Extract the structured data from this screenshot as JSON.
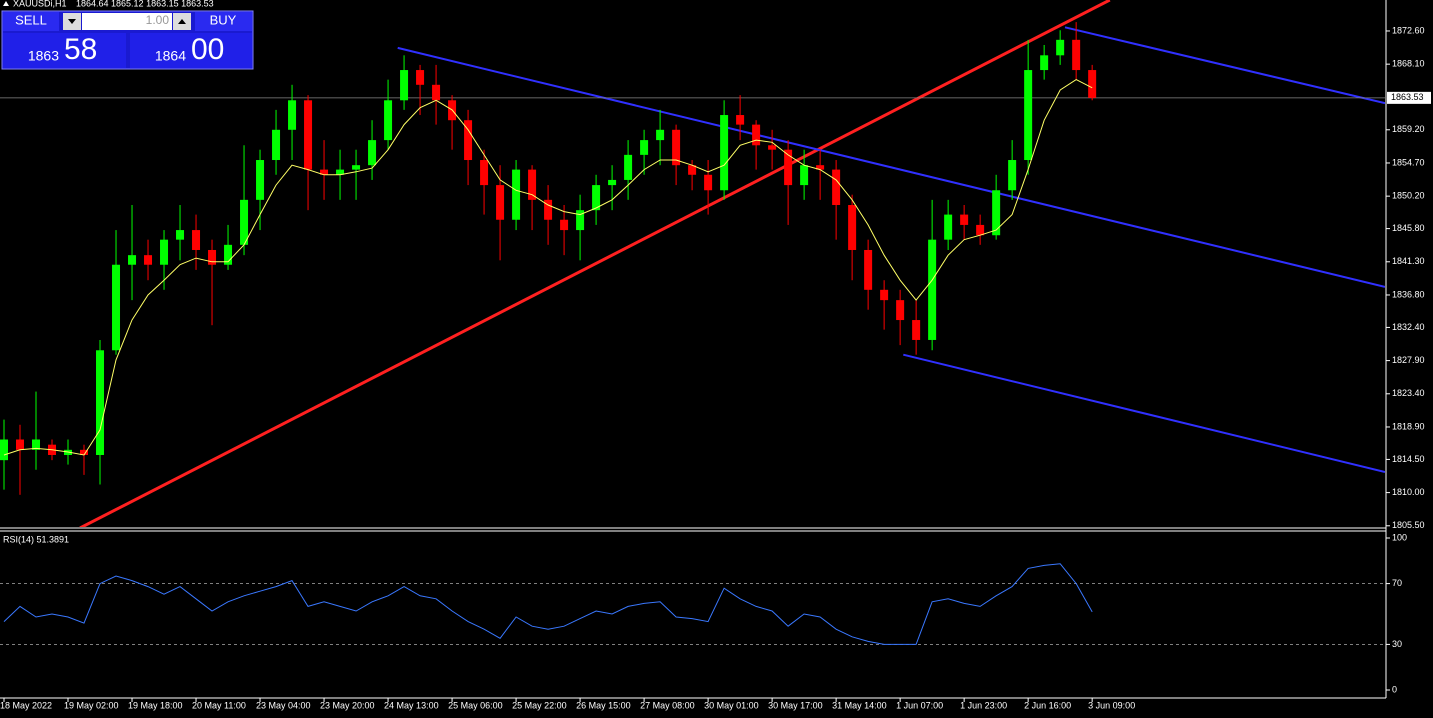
{
  "header": {
    "symbol": "XAUUSDi,H1",
    "ohlc": "1864.64 1865.12 1863.15 1863.53"
  },
  "trade_panel": {
    "sell": "SELL",
    "buy": "BUY",
    "lots": "1.00",
    "bid_big": "1863",
    "bid_small": "58",
    "ask_big": "1864",
    "ask_small": "00"
  },
  "chart_data": [
    {
      "type": "candlestick",
      "categories": [
        "18 May 2022",
        null,
        null,
        null,
        "19 May 02:00",
        null,
        null,
        null,
        "19 May 18:00",
        null,
        null,
        null,
        "20 May 11:00",
        null,
        null,
        null,
        "23 May 04:00",
        null,
        null,
        null,
        "23 May 20:00",
        null,
        null,
        null,
        "24 May 13:00",
        null,
        null,
        null,
        "25 May 06:00",
        null,
        null,
        null,
        "25 May 22:00",
        null,
        null,
        null,
        "26 May 15:00",
        null,
        null,
        null,
        "27 May 08:00",
        null,
        null,
        null,
        "30 May 01:00",
        null,
        null,
        null,
        "30 May 17:00",
        null,
        null,
        null,
        "31 May 14:00",
        null,
        null,
        null,
        "1 Jun 07:00",
        null,
        null,
        null,
        "1 Jun 23:00",
        null,
        null,
        null,
        "2 Jun 16:00",
        null,
        null,
        null,
        "3 Jun 09:00"
      ],
      "open": [
        1814.4,
        1817.2,
        1815.8,
        1816.5,
        1815.1,
        1815.8,
        1815.1,
        1829.3,
        1840.9,
        1842.2,
        1840.9,
        1844.3,
        1845.6,
        1842.9,
        1840.9,
        1843.6,
        1849.7,
        1855.1,
        1859.2,
        1863.2,
        1853.8,
        1853.1,
        1853.8,
        1854.4,
        1857.8,
        1863.2,
        1867.3,
        1865.3,
        1863.2,
        1860.5,
        1855.1,
        1851.7,
        1847.0,
        1853.8,
        1849.7,
        1847.0,
        1845.6,
        1848.3,
        1851.7,
        1852.4,
        1855.8,
        1857.8,
        1859.2,
        1854.4,
        1853.1,
        1851.0,
        1861.2,
        1859.9,
        1857.1,
        1856.5,
        1851.7,
        1854.4,
        1853.8,
        1849.0,
        1842.9,
        1837.5,
        1836.1,
        1833.4,
        1830.7,
        1844.3,
        1847.7,
        1846.3,
        1844.9,
        1851.0,
        1855.1,
        1867.3,
        1869.3,
        1871.4,
        1867.3
      ],
      "high": [
        1819.9,
        1819.2,
        1823.7,
        1817.2,
        1817.2,
        1816.5,
        1830.7,
        1845.6,
        1849.0,
        1844.3,
        1845.6,
        1849.0,
        1847.7,
        1844.3,
        1846.3,
        1857.1,
        1856.5,
        1861.9,
        1865.3,
        1863.9,
        1857.8,
        1856.5,
        1856.5,
        1860.5,
        1866.0,
        1869.3,
        1868.0,
        1868.0,
        1863.9,
        1861.9,
        1856.5,
        1854.4,
        1855.1,
        1854.4,
        1851.7,
        1849.0,
        1850.4,
        1853.1,
        1854.4,
        1857.8,
        1859.2,
        1861.9,
        1859.9,
        1855.1,
        1855.1,
        1863.2,
        1863.9,
        1860.5,
        1859.2,
        1857.8,
        1856.5,
        1856.5,
        1855.1,
        1850.4,
        1844.3,
        1838.8,
        1837.5,
        1836.1,
        1849.7,
        1849.7,
        1849.0,
        1847.7,
        1853.1,
        1857.8,
        1871.4,
        1870.7,
        1872.7,
        1873.8,
        1868.0
      ],
      "low": [
        1810.4,
        1809.7,
        1813.1,
        1814.4,
        1813.8,
        1812.4,
        1811.1,
        1828.7,
        1836.1,
        1838.8,
        1837.5,
        1841.5,
        1840.2,
        1832.7,
        1840.2,
        1842.2,
        1845.6,
        1853.1,
        1855.1,
        1848.3,
        1849.7,
        1849.7,
        1849.7,
        1852.4,
        1856.5,
        1861.9,
        1861.2,
        1859.9,
        1856.5,
        1851.7,
        1847.7,
        1841.5,
        1845.6,
        1845.6,
        1843.6,
        1842.2,
        1841.5,
        1846.3,
        1848.3,
        1849.7,
        1853.1,
        1854.4,
        1851.7,
        1851.0,
        1847.7,
        1849.7,
        1857.8,
        1853.8,
        1853.8,
        1846.3,
        1849.7,
        1849.7,
        1844.3,
        1838.8,
        1834.8,
        1832.1,
        1830.0,
        1828.7,
        1829.3,
        1842.9,
        1844.3,
        1843.6,
        1844.3,
        1849.7,
        1853.1,
        1866.0,
        1868.0,
        1866.0,
        1863.2
      ],
      "close": [
        1817.2,
        1815.8,
        1817.2,
        1815.1,
        1815.8,
        1815.1,
        1829.3,
        1840.9,
        1842.2,
        1840.9,
        1844.3,
        1845.6,
        1842.9,
        1840.9,
        1843.6,
        1849.7,
        1855.1,
        1859.2,
        1863.2,
        1853.8,
        1853.1,
        1853.8,
        1854.4,
        1857.8,
        1863.2,
        1867.3,
        1865.3,
        1863.2,
        1860.5,
        1855.1,
        1851.7,
        1847.0,
        1853.8,
        1849.7,
        1847.0,
        1845.6,
        1848.3,
        1851.7,
        1852.4,
        1855.8,
        1857.8,
        1859.2,
        1854.4,
        1853.1,
        1851.0,
        1861.2,
        1859.9,
        1857.1,
        1856.5,
        1851.7,
        1854.4,
        1853.8,
        1849.0,
        1842.9,
        1837.5,
        1836.1,
        1833.4,
        1830.7,
        1844.3,
        1847.7,
        1846.3,
        1844.9,
        1851.0,
        1855.1,
        1867.3,
        1869.3,
        1871.4,
        1867.3,
        1863.53
      ],
      "up_color": "#00ff00",
      "down_color": "#ff0000",
      "series": [
        {
          "color": "#ffff66",
          "values": [
            1815.1,
            1815.8,
            1816.0,
            1815.8,
            1815.5,
            1815.1,
            1818.5,
            1828.0,
            1833.4,
            1836.8,
            1838.8,
            1840.9,
            1841.8,
            1841.3,
            1841.3,
            1843.6,
            1847.7,
            1851.7,
            1854.4,
            1853.8,
            1853.1,
            1853.1,
            1853.5,
            1854.0,
            1856.5,
            1859.9,
            1862.2,
            1863.2,
            1861.9,
            1859.2,
            1855.8,
            1852.4,
            1851.0,
            1850.4,
            1849.0,
            1848.1,
            1847.7,
            1848.6,
            1849.7,
            1851.7,
            1853.8,
            1855.1,
            1855.1,
            1854.4,
            1853.5,
            1854.4,
            1857.1,
            1857.8,
            1857.5,
            1855.8,
            1854.4,
            1853.8,
            1852.4,
            1849.7,
            1846.3,
            1842.2,
            1838.8,
            1836.1,
            1838.8,
            1842.2,
            1844.3,
            1844.9,
            1845.6,
            1847.7,
            1853.8,
            1860.5,
            1864.6,
            1866.0,
            1864.9
          ]
        }
      ],
      "trendlines": [
        {
          "color": "#ff2020",
          "points": [
            [
              4.75,
              1805.2
            ],
            [
              69.1,
              1876.8
            ]
          ]
        },
        {
          "color": "#3030ff",
          "points": [
            [
              24.6,
              1870.3
            ],
            [
              86.3,
              1837.9
            ]
          ]
        },
        {
          "color": "#3030ff",
          "points": [
            [
              66.3,
              1873.1
            ],
            [
              86.3,
              1862.8
            ]
          ]
        },
        {
          "color": "#3030ff",
          "points": [
            [
              56.2,
              1828.7
            ],
            [
              86.3,
              1812.8
            ]
          ]
        }
      ],
      "current_price": 1863.53,
      "xlim": [
        -0.25,
        86.3
      ],
      "ylim": [
        1805.2,
        1876.8
      ],
      "yticks": [
        {
          "value": 1872.6,
          "label": "1872.60"
        },
        {
          "value": 1868.1,
          "label": "1868.10"
        },
        {
          "value": 1859.2,
          "label": "1859.20"
        },
        {
          "value": 1854.7,
          "label": "1854.70"
        },
        {
          "value": 1850.2,
          "label": "1850.20"
        },
        {
          "value": 1845.8,
          "label": "1845.80"
        },
        {
          "value": 1841.3,
          "label": "1841.30"
        },
        {
          "value": 1836.8,
          "label": "1836.80"
        },
        {
          "value": 1832.4,
          "label": "1832.40"
        },
        {
          "value": 1827.9,
          "label": "1827.90"
        },
        {
          "value": 1823.4,
          "label": "1823.40"
        },
        {
          "value": 1818.9,
          "label": "1818.90"
        },
        {
          "value": 1814.5,
          "label": "1814.50"
        },
        {
          "value": 1810,
          "label": "1810.00"
        },
        {
          "value": 1805.5,
          "label": "1805.50"
        }
      ]
    },
    {
      "type": "line",
      "title": "RSI(14) 51.3891",
      "color": "#3a78ff",
      "values": [
        45,
        55,
        48,
        50,
        48,
        44,
        70,
        75,
        72,
        68,
        63,
        68,
        60,
        52,
        58,
        62,
        65,
        68,
        72,
        55,
        58,
        55,
        52,
        58,
        62,
        68,
        62,
        60,
        52,
        45,
        40,
        34,
        48,
        42,
        40,
        42,
        47,
        52,
        50,
        55,
        57,
        58,
        48,
        47,
        45,
        67,
        60,
        55,
        52,
        42,
        50,
        48,
        40,
        35,
        32,
        30,
        30,
        30,
        58,
        60,
        57,
        55,
        62,
        68,
        80,
        82,
        83,
        70,
        51.3891
      ],
      "levels": [
        30,
        70
      ],
      "ylim": [
        0,
        100
      ],
      "yticks": [
        0,
        30,
        70,
        100
      ]
    }
  ]
}
